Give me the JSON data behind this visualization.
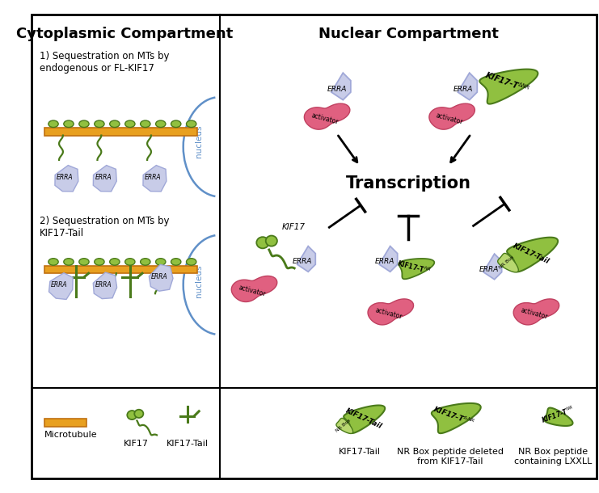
{
  "title_left": "Cytoplasmic Compartment",
  "title_right": "Nuclear Compartment",
  "text_transcription": "Transcription",
  "text_seq1": "1) Sequestration on MTs by\nendogenous or FL-KIF17",
  "text_seq2": "2) Sequestration on MTs by\nKIF17-Tail",
  "text_nucleus1": "nucleus",
  "text_nucleus2": "nucleus",
  "text_microtubule": "Microtubule",
  "text_kif17": "KIF17",
  "text_kif17tail": "KIF17-Tail",
  "text_legend_kif17tail": "KIF17-Tail",
  "text_legend_nrbox_deleted": "NR Box peptide deleted\nfrom KIF17-Tail",
  "text_legend_nrbox_containing": "NR Box peptide\ncontaining LXXLL",
  "color_green_dark": "#4a7a1a",
  "color_green_fill": "#90c040",
  "color_green_fill2": "#b8d870",
  "color_orange": "#e8a020",
  "color_orange_dark": "#c07010",
  "color_blue_erra": "#a0a8d8",
  "color_blue_erra_light": "#c8cce8",
  "color_pink": "#e06080",
  "color_pink_light": "#f090a0",
  "color_black": "#000000",
  "color_blue_nucleus": "#6090c8",
  "bg_color": "#ffffff"
}
